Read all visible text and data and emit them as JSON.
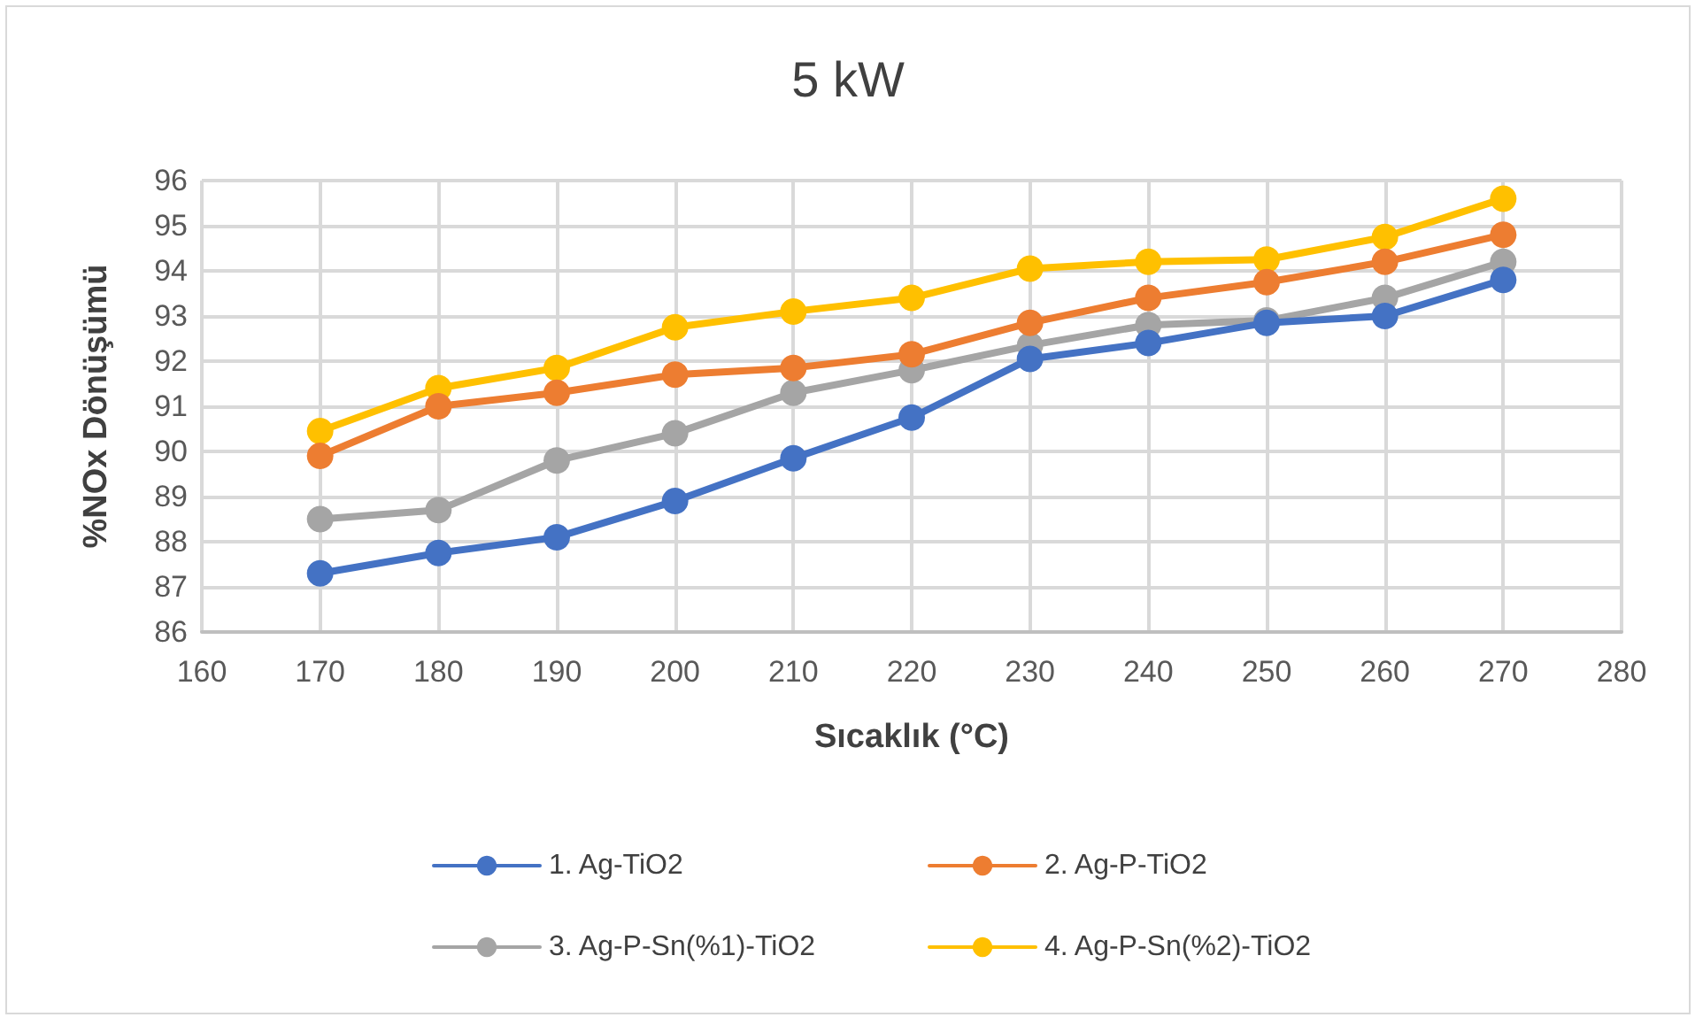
{
  "chart_data": {
    "type": "line",
    "title": "5 kW",
    "xlabel": "Sıcaklık (°C)",
    "ylabel": "%NOx Dönüşümü",
    "x": [
      170,
      180,
      190,
      200,
      210,
      220,
      230,
      240,
      250,
      260,
      270
    ],
    "series": [
      {
        "name": "1. Ag-TiO2",
        "color": "#4472c4",
        "values": [
          87.3,
          87.75,
          88.1,
          88.9,
          89.85,
          90.75,
          92.05,
          92.4,
          92.85,
          93.0,
          93.8
        ]
      },
      {
        "name": "2. Ag-P-TiO2",
        "color": "#ed7d31",
        "values": [
          89.9,
          91.0,
          91.3,
          91.7,
          91.85,
          92.15,
          92.85,
          93.4,
          93.75,
          94.2,
          94.8
        ]
      },
      {
        "name": "3. Ag-P-Sn(%1)-TiO2",
        "color": "#a5a5a5",
        "values": [
          88.5,
          88.7,
          89.8,
          90.4,
          91.3,
          91.8,
          92.35,
          92.8,
          92.9,
          93.4,
          94.2
        ]
      },
      {
        "name": "4. Ag-P-Sn(%2)-TiO2",
        "color": "#ffc000",
        "values": [
          90.45,
          91.4,
          91.85,
          92.75,
          93.1,
          93.4,
          94.05,
          94.2,
          94.25,
          94.75,
          95.6
        ]
      }
    ],
    "xlim": [
      160,
      280
    ],
    "xticks": [
      160,
      170,
      180,
      190,
      200,
      210,
      220,
      230,
      240,
      250,
      260,
      270,
      280
    ],
    "ylim": [
      86,
      96
    ],
    "yticks": [
      86,
      87,
      88,
      89,
      90,
      91,
      92,
      93,
      94,
      95,
      96
    ],
    "grid": true,
    "legend": "bottom",
    "marker": "circle",
    "line_style": "solid"
  }
}
